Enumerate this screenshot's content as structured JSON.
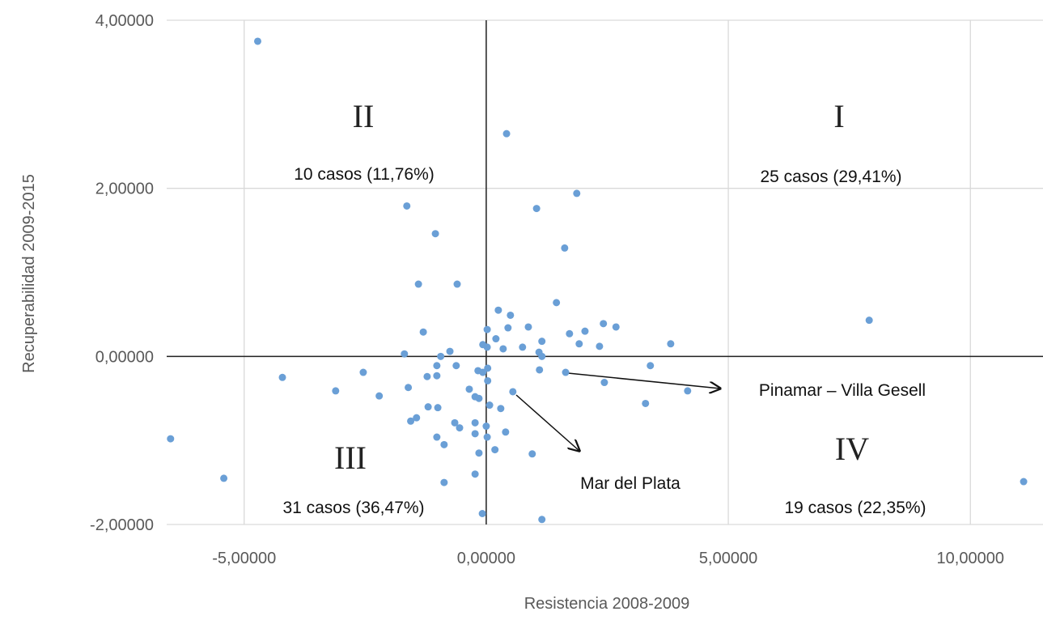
{
  "chart_data": {
    "type": "scatter",
    "x_label": "Resistencia 2008-2009",
    "y_label": "Recuperabilidad 2009-2015",
    "xlim": [
      -6.6,
      11.5
    ],
    "ylim": [
      -2,
      4
    ],
    "xticks": [
      {
        "value": -5,
        "label": "-5,00000"
      },
      {
        "value": 0,
        "label": "0,00000"
      },
      {
        "value": 5,
        "label": "5,00000"
      },
      {
        "value": 10,
        "label": "10,00000"
      }
    ],
    "yticks": [
      {
        "value": -2,
        "label": "-2,00000"
      },
      {
        "value": 0,
        "label": "0,00000"
      },
      {
        "value": 2,
        "label": "2,00000"
      },
      {
        "value": 4,
        "label": "4,00000"
      }
    ],
    "grid": true,
    "color": "#6a9fd6",
    "x": [
      -4.72,
      0.42,
      -1.64,
      -1.05,
      1.04,
      1.87,
      1.62,
      -1.4,
      -0.6,
      1.45,
      0.25,
      0.5,
      -1.3,
      2.42,
      2.68,
      0.87,
      0.45,
      1.72,
      2.04,
      0.02,
      0.2,
      1.15,
      1.92,
      2.34,
      3.81,
      7.91,
      -0.07,
      0.02,
      0.35,
      0.75,
      1.09,
      1.15,
      -1.69,
      -0.75,
      -0.94,
      -1.02,
      -0.62,
      3.39,
      0.03,
      -0.07,
      -0.17,
      -2.54,
      -4.21,
      -1.22,
      -1.02,
      1.1,
      1.64,
      0.03,
      2.44,
      -1.61,
      -3.11,
      -0.35,
      0.55,
      4.16,
      -2.21,
      -0.23,
      -0.15,
      -1.2,
      -1.0,
      0.07,
      3.29,
      0.3,
      -1.44,
      -1.56,
      -0.65,
      -0.55,
      -0.23,
      0.0,
      0.4,
      -0.23,
      0.02,
      -1.02,
      -0.87,
      0.18,
      -0.15,
      0.95,
      -6.52,
      -5.42,
      -0.23,
      -0.87,
      11.1,
      -0.08,
      1.15
    ],
    "values": [
      3.75,
      2.65,
      1.79,
      1.46,
      1.76,
      1.94,
      1.29,
      0.86,
      0.86,
      0.64,
      0.55,
      0.49,
      0.29,
      0.39,
      0.35,
      0.35,
      0.34,
      0.27,
      0.3,
      0.32,
      0.21,
      0.18,
      0.15,
      0.12,
      0.15,
      0.43,
      0.14,
      0.11,
      0.09,
      0.11,
      0.05,
      0.0,
      0.03,
      0.06,
      0.0,
      -0.11,
      -0.11,
      -0.11,
      -0.14,
      -0.19,
      -0.17,
      -0.19,
      -0.25,
      -0.24,
      -0.23,
      -0.16,
      -0.19,
      -0.29,
      -0.31,
      -0.37,
      -0.41,
      -0.39,
      -0.42,
      -0.41,
      -0.47,
      -0.48,
      -0.5,
      -0.6,
      -0.61,
      -0.58,
      -0.56,
      -0.62,
      -0.73,
      -0.77,
      -0.79,
      -0.85,
      -0.79,
      -0.83,
      -0.9,
      -0.92,
      -0.96,
      -0.96,
      -1.05,
      -1.11,
      -1.15,
      -1.16,
      -0.98,
      -1.45,
      -1.4,
      -1.5,
      -1.49,
      -1.87,
      -1.94
    ],
    "annotations": [
      "II",
      "I",
      "10 casos (11,76%)",
      "25 casos (29,41%)",
      "III",
      "IV",
      "31 casos (36,47%)",
      "19 casos (22,35%)",
      "Pinamar – Villa Gesell",
      "Mar del Plata"
    ]
  }
}
